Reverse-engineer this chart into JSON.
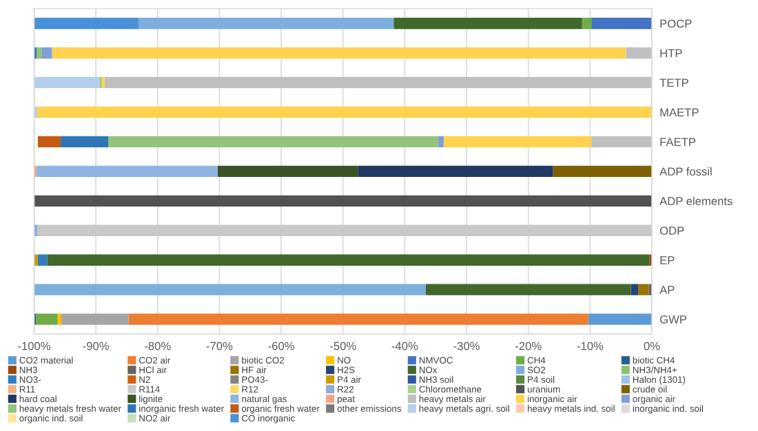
{
  "chart_data": {
    "type": "bar",
    "orientation": "horizontal",
    "stacked": true,
    "categories": [
      "POCP",
      "HTP",
      "TETP",
      "MAETP",
      "FAETP",
      "ADP fossil",
      "ADP elements",
      "ODP",
      "EP",
      "AP",
      "GWP"
    ],
    "xlim": [
      -100,
      0
    ],
    "xticks": [
      {
        "value": -100,
        "label": "-100%"
      },
      {
        "value": -90,
        "label": "-90%"
      },
      {
        "value": -80,
        "label": "-80%"
      },
      {
        "value": -70,
        "label": "-70%"
      },
      {
        "value": -60,
        "label": "-60%"
      },
      {
        "value": -50,
        "label": "-50%"
      },
      {
        "value": -40,
        "label": "-40%"
      },
      {
        "value": -30,
        "label": "-30%"
      },
      {
        "value": -20,
        "label": "-20%"
      },
      {
        "value": -10,
        "label": "-10%"
      },
      {
        "value": 0,
        "label": "0%"
      }
    ],
    "grid": "x",
    "legend": "bottom",
    "series": [
      {
        "name": "CO2 material",
        "color": "#5b9bd5",
        "values": [
          null,
          null,
          null,
          null,
          null,
          null,
          null,
          null,
          null,
          null,
          -10.3
        ]
      },
      {
        "name": "CO2 air",
        "color": "#ed7d31",
        "values": [
          null,
          null,
          null,
          null,
          null,
          null,
          null,
          null,
          null,
          null,
          -74.4
        ]
      },
      {
        "name": "biotic CO2",
        "color": "#a5a5a5",
        "values": [
          null,
          null,
          null,
          null,
          null,
          null,
          null,
          null,
          null,
          null,
          -10.9
        ]
      },
      {
        "name": "NO",
        "color": "#ffc000",
        "values": [
          null,
          null,
          null,
          null,
          null,
          null,
          null,
          null,
          null,
          null,
          -0.6
        ]
      },
      {
        "name": "NMVOC",
        "color": "#4472c4",
        "values": [
          -9.8,
          null,
          null,
          null,
          null,
          null,
          null,
          null,
          null,
          null,
          null
        ]
      },
      {
        "name": "CH4",
        "color": "#70ad47",
        "values": [
          -1.5,
          null,
          null,
          null,
          null,
          null,
          null,
          null,
          null,
          null,
          -3.5
        ]
      },
      {
        "name": "biotic CH4",
        "color": "#255e91",
        "values": [
          null,
          null,
          null,
          null,
          null,
          null,
          null,
          null,
          null,
          null,
          -0.3
        ]
      },
      {
        "name": "NH3",
        "color": "#9e480e",
        "values": [
          null,
          null,
          null,
          null,
          null,
          null,
          null,
          null,
          -0.4,
          null,
          null
        ]
      },
      {
        "name": "HCl air",
        "color": "#636363",
        "values": [
          null,
          null,
          null,
          null,
          null,
          null,
          null,
          null,
          null,
          -0.5,
          null
        ]
      },
      {
        "name": "HF air",
        "color": "#997300",
        "values": [
          null,
          null,
          null,
          null,
          null,
          null,
          null,
          null,
          null,
          -1.7,
          null
        ]
      },
      {
        "name": "H2S",
        "color": "#264478",
        "values": [
          null,
          null,
          null,
          null,
          null,
          null,
          null,
          null,
          null,
          -1.2,
          null
        ]
      },
      {
        "name": "NOx",
        "color": "#43682b",
        "values": [
          -30.5,
          null,
          null,
          null,
          null,
          null,
          null,
          null,
          -97.5,
          -33.2,
          null
        ]
      },
      {
        "name": "SO2",
        "color": "#7cafdd",
        "values": [
          -41.3,
          null,
          null,
          null,
          null,
          null,
          null,
          null,
          null,
          -63.4,
          null
        ]
      },
      {
        "name": "NH3/NH4+",
        "color": "#8cc168",
        "values": [
          null,
          null,
          null,
          null,
          null,
          null,
          null,
          null,
          null,
          null,
          null
        ]
      },
      {
        "name": "NO3-",
        "color": "#327dc2",
        "values": [
          null,
          null,
          null,
          null,
          null,
          null,
          null,
          null,
          -1.5,
          null,
          null
        ]
      },
      {
        "name": "N2",
        "color": "#d26012",
        "values": [
          null,
          null,
          null,
          null,
          null,
          null,
          null,
          null,
          null,
          null,
          null
        ]
      },
      {
        "name": "PO43-",
        "color": "#848484",
        "values": [
          null,
          null,
          null,
          null,
          null,
          null,
          null,
          null,
          null,
          null,
          null
        ]
      },
      {
        "name": "P4 air",
        "color": "#cc9a00",
        "values": [
          null,
          null,
          null,
          null,
          null,
          null,
          null,
          null,
          -0.6,
          null,
          null
        ]
      },
      {
        "name": "NH3 soil",
        "color": "#335aa1",
        "values": [
          null,
          null,
          null,
          null,
          null,
          null,
          null,
          null,
          null,
          null,
          null
        ]
      },
      {
        "name": "P4 soil",
        "color": "#5a8a39",
        "values": [
          null,
          null,
          null,
          null,
          null,
          null,
          null,
          null,
          null,
          null,
          null
        ]
      },
      {
        "name": "Halon (1301)",
        "color": "#9dc3e6",
        "values": [
          null,
          null,
          null,
          null,
          null,
          null,
          null,
          null,
          null,
          null,
          null
        ]
      },
      {
        "name": "R11",
        "color": "#f4b183",
        "values": [
          null,
          null,
          null,
          null,
          null,
          null,
          null,
          null,
          null,
          null,
          null
        ]
      },
      {
        "name": "R114",
        "color": "#c9c9c9",
        "values": [
          null,
          null,
          null,
          null,
          null,
          null,
          null,
          -99.5,
          null,
          null,
          null
        ]
      },
      {
        "name": "R12",
        "color": "#ffd966",
        "values": [
          null,
          null,
          null,
          null,
          null,
          null,
          null,
          null,
          null,
          null,
          null
        ]
      },
      {
        "name": "R22",
        "color": "#8faadc",
        "values": [
          null,
          null,
          null,
          null,
          null,
          null,
          null,
          -0.5,
          null,
          null,
          null
        ]
      },
      {
        "name": "Chloromethane",
        "color": "#a9d18e",
        "values": [
          null,
          null,
          null,
          null,
          null,
          null,
          null,
          null,
          null,
          null,
          null
        ]
      },
      {
        "name": "uranium",
        "color": "#525252",
        "values": [
          null,
          null,
          null,
          null,
          null,
          null,
          -100,
          null,
          null,
          null,
          null
        ]
      },
      {
        "name": "crude oil",
        "color": "#7f6000",
        "values": [
          null,
          null,
          null,
          null,
          null,
          -16.0,
          null,
          null,
          null,
          null,
          null
        ]
      },
      {
        "name": "hard coal",
        "color": "#1f3864",
        "values": [
          null,
          null,
          null,
          null,
          null,
          -31.6,
          null,
          null,
          null,
          null,
          null
        ]
      },
      {
        "name": "lignite",
        "color": "#375623",
        "values": [
          null,
          null,
          null,
          null,
          null,
          -22.7,
          null,
          null,
          null,
          null,
          null
        ]
      },
      {
        "name": "natural gas",
        "color": "#8db4e2",
        "values": [
          null,
          null,
          null,
          null,
          null,
          -29.3,
          null,
          null,
          null,
          null,
          null
        ]
      },
      {
        "name": "peat",
        "color": "#f4a582",
        "values": [
          null,
          null,
          null,
          null,
          null,
          -0.4,
          null,
          null,
          null,
          null,
          null
        ]
      },
      {
        "name": "heavy metals air",
        "color": "#bfbfbf",
        "values": [
          null,
          -4.2,
          -88.6,
          null,
          -9.8,
          null,
          null,
          null,
          null,
          null,
          null
        ]
      },
      {
        "name": "inorganic air",
        "color": "#ffd34d",
        "values": [
          null,
          -92.9,
          -0.5,
          -99.5,
          -23.9,
          null,
          null,
          null,
          null,
          null,
          null
        ]
      },
      {
        "name": "organic air",
        "color": "#7f9fd8",
        "values": [
          null,
          -1.7,
          null,
          null,
          -0.9,
          null,
          null,
          null,
          null,
          null,
          null
        ]
      },
      {
        "name": "heavy metals fresh water",
        "color": "#93c47d",
        "values": [
          null,
          -0.8,
          -0.3,
          null,
          -53.4,
          null,
          null,
          null,
          null,
          null,
          null
        ]
      },
      {
        "name": "inorganic fresh water",
        "color": "#2e75b6",
        "values": [
          null,
          -0.4,
          null,
          null,
          -7.7,
          null,
          null,
          null,
          null,
          null,
          null
        ]
      },
      {
        "name": "organic fresh water",
        "color": "#c55a11",
        "values": [
          null,
          null,
          null,
          null,
          -3.7,
          null,
          null,
          null,
          null,
          null,
          null
        ]
      },
      {
        "name": "other emissions",
        "color": "#7b7b7b",
        "values": [
          null,
          null,
          null,
          null,
          null,
          null,
          null,
          null,
          null,
          null,
          null
        ]
      },
      {
        "name": "heavy metals agri. soil",
        "color": "#b4cfec",
        "values": [
          null,
          null,
          -10.6,
          -0.5,
          null,
          null,
          null,
          null,
          null,
          null,
          null
        ]
      },
      {
        "name": "heavy metals ind. soil",
        "color": "#f8cbad",
        "values": [
          null,
          null,
          null,
          null,
          null,
          null,
          null,
          null,
          null,
          null,
          null
        ]
      },
      {
        "name": "inorganic ind. soil",
        "color": "#dbdbdb",
        "values": [
          null,
          null,
          null,
          null,
          null,
          null,
          null,
          null,
          null,
          null,
          null
        ]
      },
      {
        "name": "organic ind. soil",
        "color": "#ffe699",
        "values": [
          null,
          null,
          null,
          null,
          null,
          null,
          null,
          null,
          null,
          null,
          null
        ]
      },
      {
        "name": "NO2 air",
        "color": "#c5e0b4",
        "values": [
          null,
          null,
          null,
          null,
          null,
          null,
          null,
          null,
          null,
          null,
          null
        ]
      },
      {
        "name": "CO inorganic",
        "color": "#4a90d9",
        "values": [
          -16.9,
          null,
          null,
          null,
          null,
          null,
          null,
          null,
          null,
          null,
          null
        ]
      }
    ]
  }
}
